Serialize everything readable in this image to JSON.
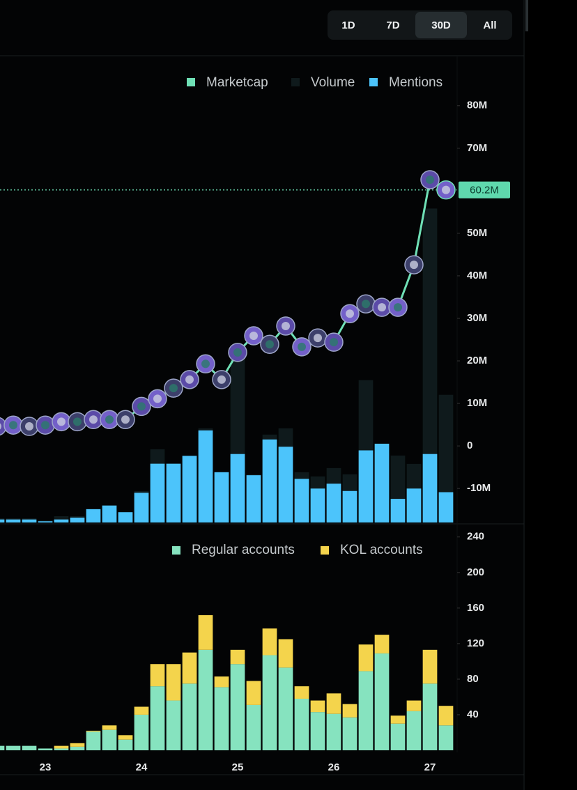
{
  "range_buttons": [
    "1D",
    "7D",
    "30D",
    "All"
  ],
  "selected_range": "30D",
  "chart_data": [
    {
      "type": "combo",
      "categories": [
        null,
        null,
        null,
        "23",
        null,
        null,
        null,
        null,
        null,
        "24",
        null,
        null,
        null,
        null,
        null,
        "25",
        null,
        null,
        null,
        null,
        null,
        "26",
        null,
        null,
        null,
        null,
        null,
        "27",
        null
      ],
      "series": [
        {
          "name": "Marketcap",
          "color": "#6fe0b6",
          "kind": "line",
          "axis": "y",
          "values": [
            4.6,
            4.9,
            4.6,
            4.9,
            5.7,
            5.7,
            6.2,
            6.2,
            6.2,
            9.3,
            11.1,
            13.6,
            15.6,
            19.3,
            15.6,
            22,
            25.9,
            23.9,
            28.2,
            23.3,
            25.4,
            24.4,
            31.1,
            33.4,
            32.6,
            32.6,
            42.6,
            62.6,
            60.2
          ]
        },
        {
          "name": "Volume",
          "color": "#0f1a1c",
          "kind": "bar",
          "axis": "y3",
          "values": [
            0.2,
            0.2,
            0.2,
            0.1,
            0.3,
            0.3,
            0.5,
            0.6,
            0.4,
            1.5,
            3.5,
            2.2,
            2.5,
            4.5,
            2.0,
            8.0,
            2.3,
            4.2,
            4.5,
            2.4,
            2.2,
            2.6,
            2.3,
            6.8,
            3.3,
            3.2,
            2.8,
            15.0,
            6.1
          ]
        },
        {
          "name": "Mentions",
          "color": "#4cc4fb",
          "kind": "bar",
          "axis": "y2",
          "values": [
            5,
            5,
            5,
            2,
            5,
            8,
            22,
            28,
            17,
            49,
            97,
            97,
            110,
            152,
            83,
            113,
            78,
            137,
            125,
            72,
            56,
            64,
            52,
            119,
            130,
            39,
            56,
            113,
            50
          ]
        }
      ],
      "current": {
        "value": 60.2,
        "label": "60.2M"
      },
      "ylim": [
        -18,
        89.3
      ],
      "yticks": [
        {
          "value": 80,
          "label": "80M"
        },
        {
          "value": 70,
          "label": "70M"
        },
        {
          "value": 50,
          "label": "50M"
        },
        {
          "value": 40,
          "label": "40M"
        },
        {
          "value": 30,
          "label": "30M"
        },
        {
          "value": 20,
          "label": "20M"
        },
        {
          "value": 10,
          "label": "10M"
        },
        0,
        {
          "value": -10,
          "label": "-10M"
        }
      ],
      "y2lim": [
        0,
        753
      ],
      "y3lim": [
        0,
        21.8
      ],
      "grid": false
    },
    {
      "type": "stacked",
      "categories": [
        null,
        null,
        null,
        "23",
        null,
        null,
        null,
        null,
        null,
        "24",
        null,
        null,
        null,
        null,
        null,
        "25",
        null,
        null,
        null,
        null,
        null,
        "26",
        null,
        null,
        null,
        null,
        null,
        "27",
        null
      ],
      "series": [
        {
          "name": "Regular accounts",
          "color": "#86e3bf",
          "values": [
            5,
            5,
            5,
            2,
            2,
            4,
            21,
            23,
            12,
            40,
            72,
            56,
            75,
            113,
            71,
            97,
            51,
            107,
            93,
            58,
            43,
            41,
            37,
            89,
            109,
            30,
            44,
            75,
            28
          ]
        },
        {
          "name": "KOL accounts",
          "color": "#f4d44c",
          "values": [
            0,
            0,
            0,
            0,
            3,
            4,
            1,
            5,
            5,
            9,
            25,
            41,
            35,
            39,
            12,
            16,
            27,
            30,
            32,
            14,
            13,
            23,
            15,
            30,
            21,
            9,
            12,
            38,
            22
          ]
        }
      ],
      "ylim": [
        0,
        250
      ],
      "yticks": [
        240,
        200,
        160,
        120,
        80,
        40
      ],
      "grid": false
    }
  ]
}
